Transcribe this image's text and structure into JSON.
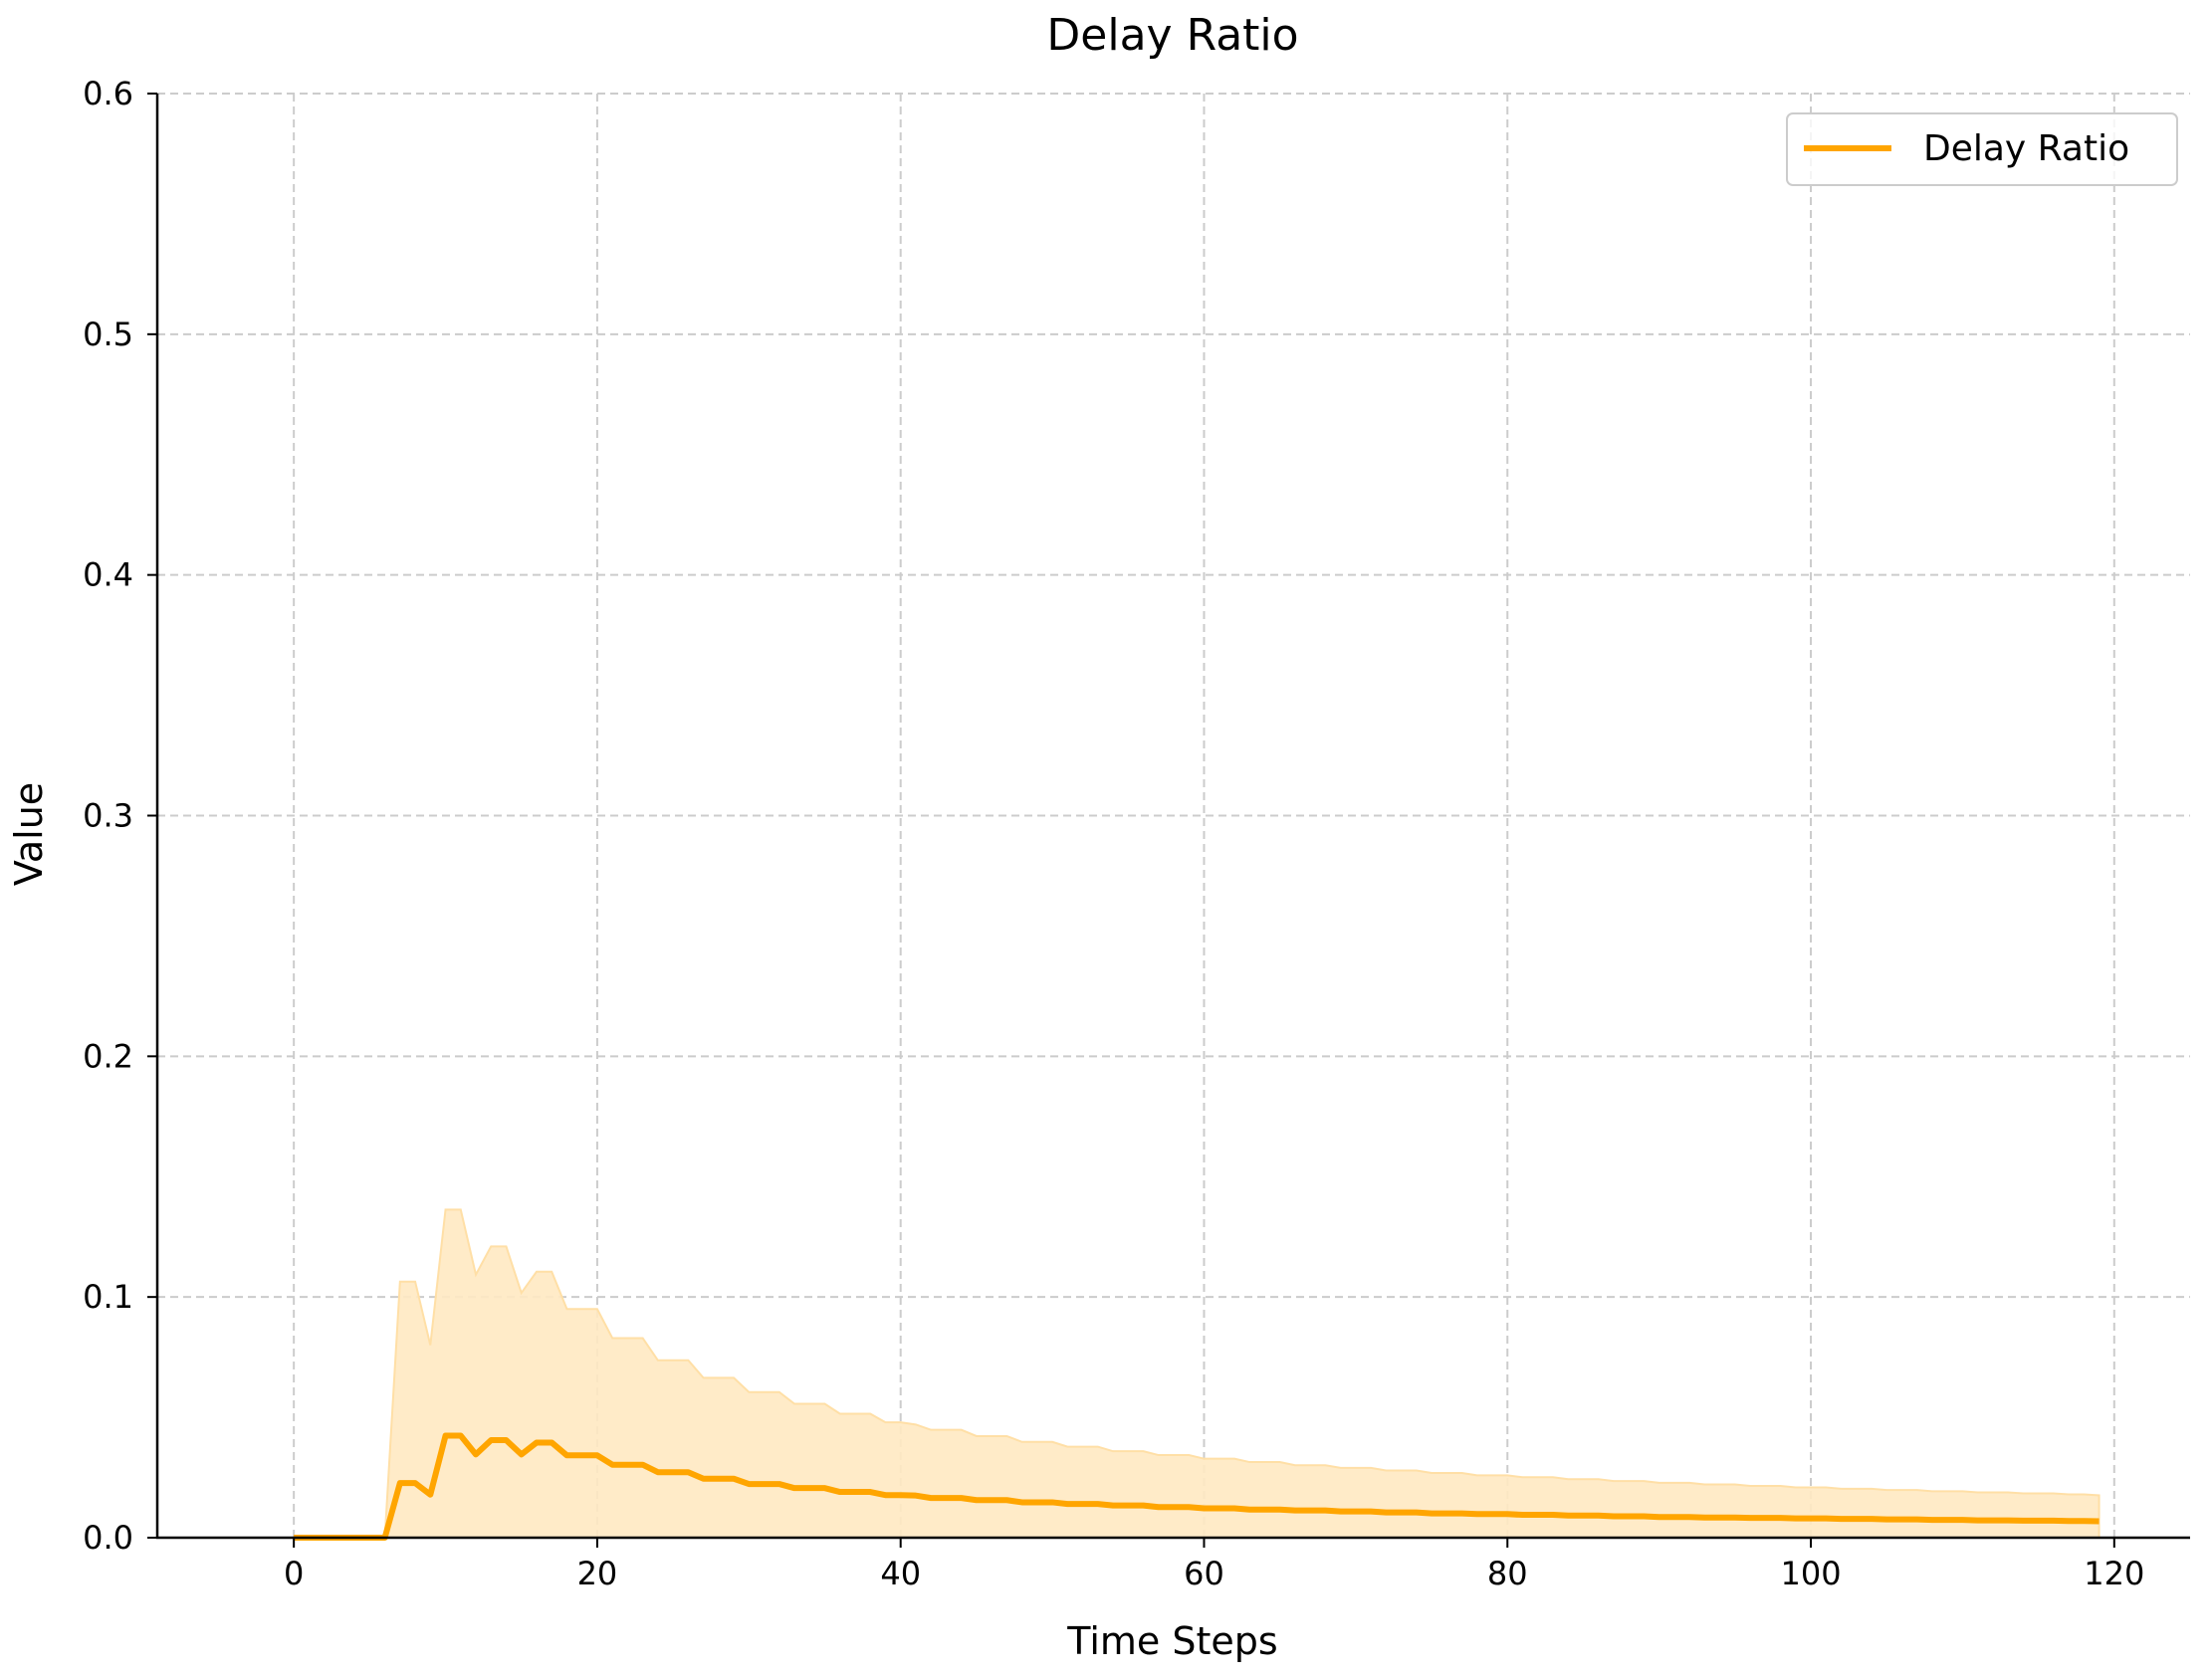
{
  "chart_data": {
    "type": "line",
    "title": "Delay Ratio",
    "xlabel": "Time Steps",
    "ylabel": "Value",
    "xlim": [
      -9,
      125
    ],
    "ylim": [
      0,
      0.6
    ],
    "xticks": [
      0,
      20,
      40,
      60,
      80,
      100,
      120
    ],
    "yticks": [
      0.0,
      0.1,
      0.2,
      0.3,
      0.4,
      0.5,
      0.6
    ],
    "xtick_labels": [
      "0",
      "20",
      "40",
      "60",
      "80",
      "100",
      "120"
    ],
    "ytick_labels": [
      "0.0",
      "0.1",
      "0.2",
      "0.3",
      "0.4",
      "0.5",
      "0.6"
    ],
    "grid": true,
    "legend_position": "top-right",
    "colors": {
      "line": "#FFA500",
      "band": "#FFE9C2",
      "grid": "#cccccc"
    },
    "series": [
      {
        "name": "Delay Ratio",
        "x": [
          0,
          1,
          2,
          3,
          4,
          5,
          6,
          7,
          8,
          9,
          10,
          11,
          12,
          13,
          14,
          15,
          16,
          17,
          18,
          19,
          20,
          21,
          22,
          23,
          24,
          25,
          26,
          27,
          28,
          29,
          30,
          31,
          32,
          33,
          34,
          35,
          36,
          37,
          38,
          39,
          40,
          41,
          42,
          43,
          44,
          45,
          46,
          47,
          48,
          49,
          50,
          51,
          52,
          53,
          54,
          55,
          56,
          57,
          58,
          59,
          60,
          61,
          62,
          63,
          64,
          65,
          66,
          67,
          68,
          69,
          70,
          71,
          72,
          73,
          74,
          75,
          76,
          77,
          78,
          79,
          80,
          81,
          82,
          83,
          84,
          85,
          86,
          87,
          88,
          89,
          90,
          91,
          92,
          93,
          94,
          95,
          96,
          97,
          98,
          99,
          100,
          101,
          102,
          103,
          104,
          105,
          106,
          107,
          108,
          109,
          110,
          111,
          112,
          113,
          114,
          115,
          116,
          117,
          118,
          119
        ],
        "y": [
          0,
          0,
          0,
          0,
          0,
          0,
          0,
          0.0227,
          0.0227,
          0.0179,
          0.0424,
          0.0424,
          0.0346,
          0.0405,
          0.0405,
          0.0346,
          0.0395,
          0.0395,
          0.0342,
          0.0342,
          0.0342,
          0.0303,
          0.0303,
          0.0303,
          0.0272,
          0.0272,
          0.0272,
          0.0245,
          0.0245,
          0.0245,
          0.0223,
          0.0223,
          0.0223,
          0.0206,
          0.0206,
          0.0206,
          0.019,
          0.019,
          0.019,
          0.0177,
          0.0177,
          0.0175,
          0.0165,
          0.0165,
          0.0165,
          0.0156,
          0.0156,
          0.0156,
          0.0147,
          0.0147,
          0.0147,
          0.014,
          0.014,
          0.014,
          0.0134,
          0.0134,
          0.0134,
          0.0127,
          0.0127,
          0.0127,
          0.0122,
          0.0122,
          0.0122,
          0.0117,
          0.0117,
          0.0117,
          0.0113,
          0.0113,
          0.0113,
          0.0109,
          0.0109,
          0.0109,
          0.0105,
          0.0105,
          0.0105,
          0.0101,
          0.0101,
          0.0101,
          0.0098,
          0.0098,
          0.0098,
          0.0095,
          0.0095,
          0.0095,
          0.0092,
          0.0092,
          0.0092,
          0.0089,
          0.0089,
          0.0089,
          0.0086,
          0.0086,
          0.0086,
          0.0084,
          0.0084,
          0.0084,
          0.0082,
          0.0082,
          0.0082,
          0.008,
          0.008,
          0.008,
          0.0078,
          0.0078,
          0.0078,
          0.0076,
          0.0076,
          0.0076,
          0.0074,
          0.0074,
          0.0074,
          0.0072,
          0.0072,
          0.0072,
          0.0071,
          0.0071,
          0.0071,
          0.0069,
          0.0069,
          0.0068
        ],
        "y_upper": [
          0,
          0,
          0,
          0,
          0,
          0,
          0,
          0.1064,
          0.1064,
          0.08,
          0.1363,
          0.1363,
          0.1093,
          0.121,
          0.121,
          0.1017,
          0.1105,
          0.1105,
          0.095,
          0.095,
          0.095,
          0.0829,
          0.0829,
          0.0829,
          0.0737,
          0.0737,
          0.0737,
          0.0664,
          0.0664,
          0.0664,
          0.0605,
          0.0605,
          0.0605,
          0.0556,
          0.0556,
          0.0556,
          0.0515,
          0.0515,
          0.0515,
          0.0479,
          0.0479,
          0.047,
          0.0448,
          0.0448,
          0.0448,
          0.0422,
          0.0422,
          0.0422,
          0.0398,
          0.0398,
          0.0398,
          0.0378,
          0.0378,
          0.0378,
          0.0359,
          0.0359,
          0.0359,
          0.0343,
          0.0343,
          0.0343,
          0.0328,
          0.0328,
          0.0328,
          0.0314,
          0.0314,
          0.0314,
          0.0301,
          0.0301,
          0.0301,
          0.029,
          0.029,
          0.029,
          0.0279,
          0.0279,
          0.0279,
          0.0269,
          0.0269,
          0.0269,
          0.0259,
          0.0259,
          0.0259,
          0.0251,
          0.0251,
          0.0251,
          0.0243,
          0.0243,
          0.0243,
          0.0235,
          0.0235,
          0.0235,
          0.0228,
          0.0228,
          0.0228,
          0.0221,
          0.0221,
          0.0221,
          0.0215,
          0.0215,
          0.0215,
          0.0209,
          0.0209,
          0.0209,
          0.0203,
          0.0203,
          0.0203,
          0.0198,
          0.0198,
          0.0198,
          0.0193,
          0.0193,
          0.0193,
          0.0188,
          0.0188,
          0.0188,
          0.0184,
          0.0184,
          0.0184,
          0.018,
          0.018,
          0.0176
        ],
        "y_lower": [
          0,
          0,
          0,
          0,
          0,
          0,
          0,
          0,
          0,
          0,
          0,
          0,
          0,
          0,
          0,
          0,
          0,
          0,
          0,
          0,
          0,
          0,
          0,
          0,
          0,
          0,
          0,
          0,
          0,
          0,
          0,
          0,
          0,
          0,
          0,
          0,
          0,
          0,
          0,
          0,
          0,
          0,
          0,
          0,
          0,
          0,
          0,
          0,
          0,
          0,
          0,
          0,
          0,
          0,
          0,
          0,
          0,
          0,
          0,
          0,
          0,
          0,
          0,
          0,
          0,
          0,
          0,
          0,
          0,
          0,
          0,
          0,
          0,
          0,
          0,
          0,
          0,
          0,
          0,
          0,
          0,
          0,
          0,
          0,
          0,
          0,
          0,
          0,
          0,
          0,
          0,
          0,
          0,
          0,
          0,
          0,
          0,
          0,
          0,
          0,
          0,
          0,
          0,
          0,
          0,
          0,
          0,
          0,
          0,
          0,
          0,
          0,
          0,
          0,
          0,
          0,
          0,
          0,
          0,
          0
        ]
      }
    ]
  }
}
